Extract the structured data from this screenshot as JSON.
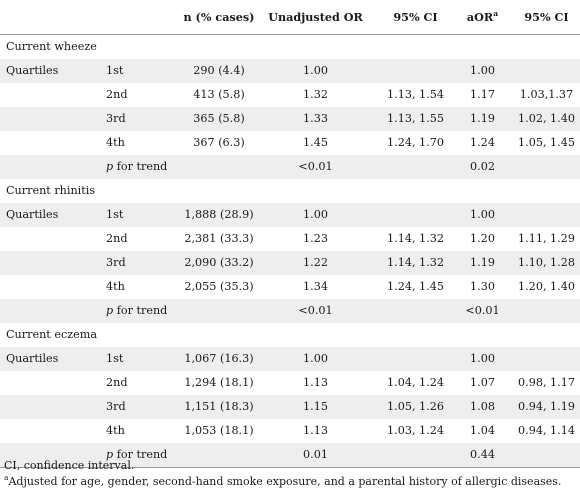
{
  "headers": {
    "n": "n (% cases)",
    "uor": "Unadjusted OR",
    "ci": "95% CI",
    "aor": "aOR",
    "aor_sup": "a",
    "ci2": "95% CI"
  },
  "sections": [
    {
      "title": "Current wheeze",
      "rows": [
        {
          "a": "Quartiles",
          "b": "1st",
          "n": "290 (4.4)",
          "uor": "1.00",
          "ci": "",
          "aor": "1.00",
          "ci2": ""
        },
        {
          "a": "",
          "b": "2nd",
          "n": "413 (5.8)",
          "uor": "1.32",
          "ci": "1.13, 1.54",
          "aor": "1.17",
          "ci2": "1.03,1.37"
        },
        {
          "a": "",
          "b": "3rd",
          "n": "365 (5.8)",
          "uor": "1.33",
          "ci": "1.13, 1.55",
          "aor": "1.19",
          "ci2": "1.02, 1.40"
        },
        {
          "a": "",
          "b": "4th",
          "n": "367 (6.3)",
          "uor": "1.45",
          "ci": "1.24, 1.70",
          "aor": "1.24",
          "ci2": "1.05, 1.45"
        },
        {
          "a": "",
          "b": "p for trend",
          "n": "",
          "uor": "<0.01",
          "ci": "",
          "aor": "0.02",
          "ci2": ""
        }
      ]
    },
    {
      "title": "Current rhinitis",
      "rows": [
        {
          "a": "Quartiles",
          "b": "1st",
          "n": "1,888 (28.9)",
          "uor": "1.00",
          "ci": "",
          "aor": "1.00",
          "ci2": ""
        },
        {
          "a": "",
          "b": "2nd",
          "n": "2,381 (33.3)",
          "uor": "1.23",
          "ci": "1.14, 1.32",
          "aor": "1.20",
          "ci2": "1.11, 1.29"
        },
        {
          "a": "",
          "b": "3rd",
          "n": "2,090 (33.2)",
          "uor": "1.22",
          "ci": "1.14, 1.32",
          "aor": "1.19",
          "ci2": "1.10, 1.28"
        },
        {
          "a": "",
          "b": "4th",
          "n": "2,055 (35.3)",
          "uor": "1.34",
          "ci": "1.24, 1.45",
          "aor": "1.30",
          "ci2": "1.20, 1.40"
        },
        {
          "a": "",
          "b": "p for trend",
          "n": "",
          "uor": "<0.01",
          "ci": "",
          "aor": "<0.01",
          "ci2": ""
        }
      ]
    },
    {
      "title": "Current eczema",
      "rows": [
        {
          "a": "Quartiles",
          "b": "1st",
          "n": "1,067 (16.3)",
          "uor": "1.00",
          "ci": "",
          "aor": "1.00",
          "ci2": ""
        },
        {
          "a": "",
          "b": "2nd",
          "n": "1,294 (18.1)",
          "uor": "1.13",
          "ci": "1.04, 1.24",
          "aor": "1.07",
          "ci2": "0.98, 1.17"
        },
        {
          "a": "",
          "b": "3rd",
          "n": "1,151 (18.3)",
          "uor": "1.15",
          "ci": "1.05, 1.26",
          "aor": "1.08",
          "ci2": "0.94, 1.19"
        },
        {
          "a": "",
          "b": "4th",
          "n": "1,053 (18.1)",
          "uor": "1.13",
          "ci": "1.03, 1.24",
          "aor": "1.04",
          "ci2": "0.94, 1.14"
        },
        {
          "a": "",
          "b": "p for trend",
          "n": "",
          "uor": "0.01",
          "ci": "",
          "aor": "0.44",
          "ci2": ""
        }
      ]
    }
  ],
  "footnotes": {
    "ci": "CI, confidence interval.",
    "adj_sup": "a",
    "adj": "Adjusted for age, gender, second-hand smoke exposure, and a parental history of allergic diseases."
  }
}
